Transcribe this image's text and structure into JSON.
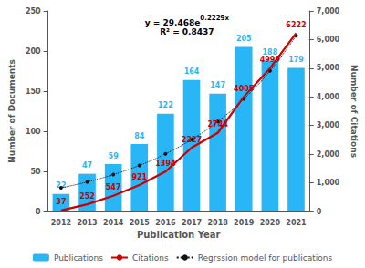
{
  "chart_data": {
    "type": "bar",
    "categories": [
      "2012",
      "2013",
      "2014",
      "2015",
      "2016",
      "2017",
      "2018",
      "2019",
      "2020",
      "2021"
    ],
    "xlabel": "Publication Year",
    "ylabel": "Number of Documents",
    "y2label": "Number of Citations",
    "ylim": [
      0,
      250
    ],
    "yticks": [
      0,
      50,
      100,
      150,
      200,
      250
    ],
    "y2lim": [
      0,
      7000
    ],
    "y2ticks": [
      0,
      1000,
      2000,
      3000,
      4000,
      5000,
      6000,
      7000
    ],
    "grid": false,
    "legend": "bottom",
    "series": [
      {
        "name": "Publications",
        "type": "bar",
        "color": "#29b6f6",
        "data_labels": true,
        "values": [
          22,
          47,
          59,
          84,
          122,
          164,
          147,
          205,
          188,
          179
        ]
      },
      {
        "name": "Citations",
        "type": "line",
        "axis": "y2",
        "color": "#cc0000",
        "data_labels": true,
        "values": [
          37,
          252,
          547,
          921,
          1394,
          2227,
          2744,
          4005,
          4999,
          6222
        ]
      },
      {
        "name": "Regrssion model for publications",
        "type": "line",
        "color": "#111111",
        "line_style": "dotted",
        "marker": "circle",
        "values": [
          29.5,
          36.8,
          46.0,
          57.5,
          71.9,
          89.8,
          112.2,
          140.3,
          175.3,
          219.1
        ]
      }
    ],
    "annotations": [
      {
        "text": "y = 29.468e",
        "superscript": "0.2229x"
      },
      {
        "text": "R² = 0.8437"
      }
    ]
  }
}
